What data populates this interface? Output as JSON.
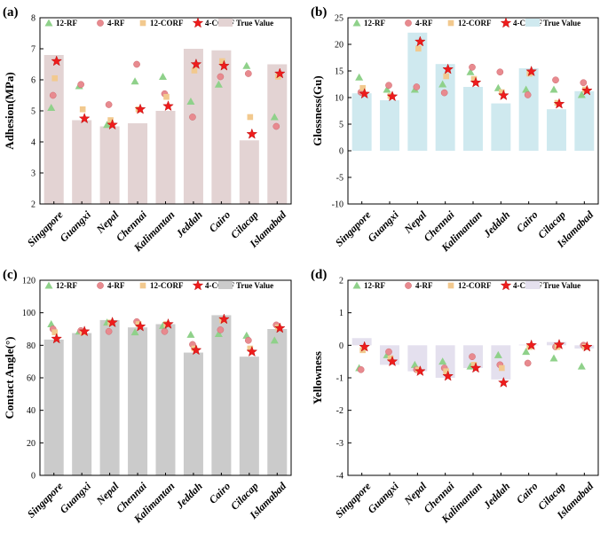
{
  "legend_labels": [
    "12-RF",
    "4-RF",
    "12-CORF",
    "4-CORF",
    "True Value"
  ],
  "colors": {
    "tri": "#8fd18a",
    "circ": "#e88a8f",
    "sq": "#f2c98e",
    "star": "#ee1c1c",
    "star_stroke": "#b00000"
  },
  "chart_data": [
    {
      "panel": "(a)",
      "type": "bar",
      "ylabel": "Adhesion(MPa)",
      "ylim": [
        2,
        8
      ],
      "yticks": [
        2,
        3,
        4,
        5,
        6,
        7,
        8
      ],
      "bar_color": "#e3d3d3",
      "categories": [
        "Singapore",
        "Guangxi",
        "Nepal",
        "Chennai",
        "Kalimantan",
        "Jeddah",
        "Cairo",
        "Cilacap",
        "Islamabad"
      ],
      "true_value": [
        6.8,
        4.7,
        4.5,
        4.6,
        5.0,
        7.0,
        6.95,
        4.05,
        6.5
      ],
      "series": [
        {
          "name": "12-RF",
          "values": [
            5.1,
            5.8,
            4.55,
            5.95,
            6.1,
            5.3,
            5.85,
            6.45,
            4.8
          ]
        },
        {
          "name": "4-RF",
          "values": [
            5.5,
            5.85,
            5.2,
            6.5,
            5.55,
            4.8,
            6.1,
            6.2,
            4.5
          ]
        },
        {
          "name": "12-CORF",
          "values": [
            6.05,
            5.05,
            4.7,
            5.05,
            5.45,
            6.3,
            6.6,
            4.8,
            6.1
          ]
        },
        {
          "name": "4-CORF",
          "values": [
            6.6,
            4.75,
            4.55,
            5.05,
            5.15,
            6.5,
            6.45,
            4.25,
            6.2
          ]
        }
      ]
    },
    {
      "panel": "(b)",
      "type": "bar",
      "ylabel": "Glossness(Gu)",
      "ylim": [
        -10,
        25
      ],
      "yticks": [
        -10,
        -5,
        0,
        5,
        10,
        15,
        20,
        25
      ],
      "bar_color": "#cfe9ef",
      "categories": [
        "Singapore",
        "Guangxi",
        "Nepal",
        "Chennai",
        "Kalimantan",
        "Jeddah",
        "Cairo",
        "Cilacap",
        "Islamabad"
      ],
      "true_value": [
        10.8,
        9.5,
        22.2,
        16.3,
        12.0,
        8.9,
        15.5,
        7.8,
        11.2
      ],
      "series": [
        {
          "name": "12-RF",
          "values": [
            13.8,
            11.5,
            11.5,
            12.5,
            14.8,
            11.8,
            11.5,
            11.5,
            10.5
          ]
        },
        {
          "name": "4-RF",
          "values": [
            11.0,
            12.3,
            12.0,
            10.9,
            15.7,
            14.8,
            10.5,
            13.3,
            12.8
          ]
        },
        {
          "name": "12-CORF",
          "values": [
            11.8,
            10.3,
            19.2,
            14.0,
            13.5,
            11.0,
            14.5,
            9.0,
            11.5
          ]
        },
        {
          "name": "4-CORF",
          "values": [
            10.7,
            10.2,
            20.5,
            15.3,
            12.8,
            10.4,
            14.9,
            8.8,
            11.3
          ]
        }
      ]
    },
    {
      "panel": "(c)",
      "type": "bar",
      "ylabel": "Contact Angle(°)",
      "ylim": [
        0,
        120
      ],
      "yticks": [
        0,
        20,
        40,
        60,
        80,
        100,
        120
      ],
      "bar_color": "#cbcbcb",
      "categories": [
        "Singapore",
        "Guangxi",
        "Nepal",
        "Chennai",
        "Kalimantan",
        "Jeddah",
        "Cairo",
        "Cilacap",
        "Islamabad"
      ],
      "true_value": [
        83.5,
        87.5,
        95.5,
        91.0,
        93.0,
        75.5,
        98.5,
        73.0,
        90.0
      ],
      "series": [
        {
          "name": "12-RF",
          "values": [
            93.0,
            88.5,
            94.0,
            88.0,
            92.0,
            86.5,
            87.0,
            86.0,
            83.0
          ]
        },
        {
          "name": "4-RF",
          "values": [
            90.0,
            89.0,
            88.5,
            94.5,
            88.5,
            80.5,
            89.5,
            83.0,
            92.5
          ]
        },
        {
          "name": "12-CORF",
          "values": [
            88.0,
            88.0,
            94.0,
            93.0,
            93.0,
            78.0,
            95.5,
            78.0,
            91.0
          ]
        },
        {
          "name": "4-CORF",
          "values": [
            84.0,
            88.5,
            94.0,
            91.5,
            93.0,
            77.0,
            96.0,
            76.0,
            90.5
          ]
        }
      ]
    },
    {
      "panel": "(d)",
      "type": "bar",
      "ylabel": "Yellowness",
      "ylim": [
        -4,
        2
      ],
      "yticks": [
        -4,
        -3,
        -2,
        -1,
        0,
        1,
        2
      ],
      "bar_color": "#e4e0ee",
      "categories": [
        "Singapore",
        "Guangxi",
        "Nepal",
        "Chennai",
        "Kalimantan",
        "Jeddah",
        "Cairo",
        "Cilacap",
        "Islamabad"
      ],
      "true_value": [
        0.22,
        -0.6,
        -0.8,
        -1.0,
        -0.7,
        -1.05,
        0.02,
        0.1,
        -0.1
      ],
      "series": [
        {
          "name": "12-RF",
          "values": [
            -0.7,
            -0.3,
            -0.6,
            -0.5,
            -0.65,
            -0.3,
            -0.2,
            -0.4,
            -0.65
          ]
        },
        {
          "name": "4-RF",
          "values": [
            -0.75,
            -0.2,
            -0.75,
            -0.7,
            -0.35,
            -0.6,
            -0.55,
            -0.05,
            0.0
          ]
        },
        {
          "name": "12-CORF",
          "values": [
            -0.15,
            -0.4,
            -0.75,
            -0.8,
            -0.6,
            -0.7,
            -0.05,
            -0.05,
            -0.05
          ]
        },
        {
          "name": "4-CORF",
          "values": [
            -0.05,
            -0.5,
            -0.8,
            -0.95,
            -0.7,
            -1.15,
            0.0,
            0.02,
            -0.05
          ]
        }
      ]
    }
  ]
}
